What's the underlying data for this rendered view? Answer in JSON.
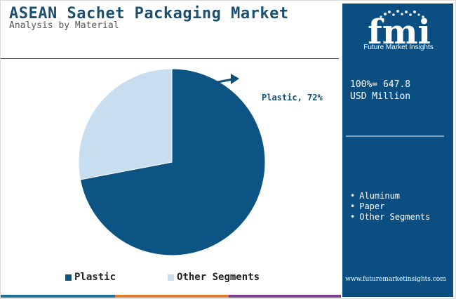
{
  "header": {
    "title": "ASEAN Sachet Packaging Market",
    "subtitle": "Analysis by Material"
  },
  "chart_data": {
    "type": "pie",
    "categories": [
      "Plastic",
      "Other Segments"
    ],
    "values": [
      72,
      28
    ],
    "unit": "%",
    "colors": [
      "#0b5484",
      "#c6def0"
    ],
    "slice_label": "Plastic, 72%",
    "legend": [
      "Plastic",
      "Other Segments"
    ],
    "legend_placement": "bottom"
  },
  "side_panel": {
    "logo_letters": "fmi",
    "logo_text": "Future Market Insights",
    "total_line1": "100%= 647.8",
    "total_line2": "USD Million",
    "other_segments": [
      "Aluminum",
      "Paper",
      "Other Segments"
    ],
    "url": "www.futuremarketinsights.com",
    "background": "#0b4f82"
  },
  "bottom_bar_colors": [
    "#1b6f9a",
    "#e07a2e",
    "#7b3f8c"
  ]
}
